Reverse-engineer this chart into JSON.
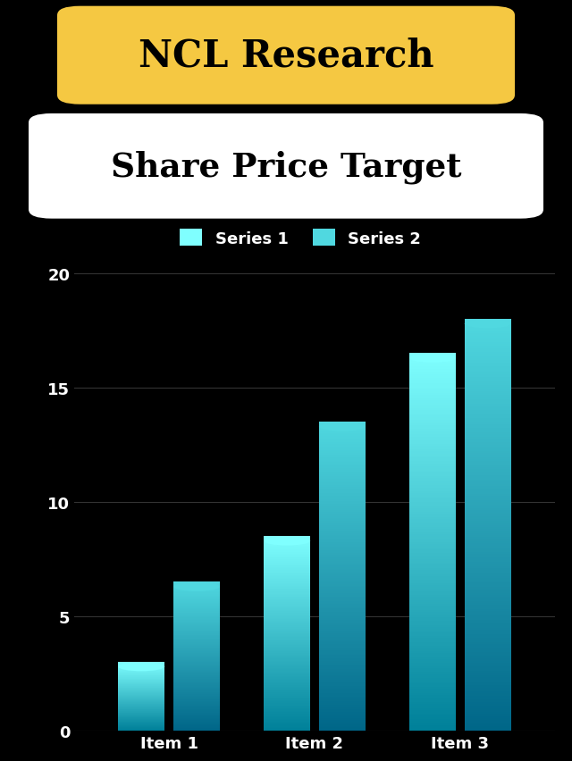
{
  "title1": "NCL Research",
  "title2": "Share Price Target",
  "title1_bg": "#F5C842",
  "title2_bg": "#FFFFFF",
  "title_text_color": "#000000",
  "background_color": "#000000",
  "categories": [
    "Item 1",
    "Item 2",
    "Item 3"
  ],
  "series1_values": [
    3,
    8.5,
    16.5
  ],
  "series2_values": [
    6.5,
    13.5,
    18
  ],
  "series1_label": "Series 1",
  "series2_label": "Series 2",
  "series1_color_top": "#7FFFFF",
  "series1_color_bottom": "#008099",
  "series2_color_top": "#50D8E0",
  "series2_color_bottom": "#006688",
  "ylim": [
    0,
    20
  ],
  "yticks": [
    0,
    5,
    10,
    15,
    20
  ],
  "grid_color": "#333333",
  "axis_text_color": "#FFFFFF",
  "bar_width": 0.32
}
